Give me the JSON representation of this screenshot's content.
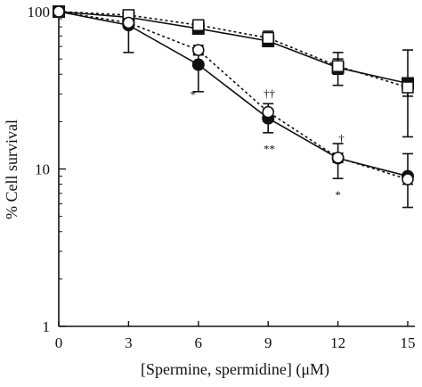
{
  "chart_data": {
    "type": "line",
    "xlabel": "[Spermine, spermidine] (μM)",
    "ylabel": "% Cell survival",
    "y_scale": "log",
    "xlim": [
      0,
      15
    ],
    "ylim": [
      1,
      100
    ],
    "x_ticks": [
      "0",
      "3",
      "6",
      "9",
      "12",
      "15"
    ],
    "y_ticks": [
      "1",
      "10",
      "100"
    ],
    "x": [
      0,
      3,
      6,
      9,
      12,
      15
    ],
    "grid": false,
    "legend": "none",
    "series": [
      {
        "marker": "filled-square",
        "line": "solid",
        "values": [
          100,
          92,
          78,
          65,
          44,
          35
        ],
        "err_low": [
          100,
          85,
          74,
          60,
          34,
          16
        ],
        "err_high": [
          100,
          98,
          82,
          70,
          55,
          57
        ]
      },
      {
        "marker": "open-square",
        "line": "dotted",
        "values": [
          100,
          95,
          82,
          68,
          45,
          33
        ],
        "err_low": [
          100,
          90,
          78,
          64,
          40,
          29
        ],
        "err_high": [
          100,
          100,
          86,
          75,
          50,
          37
        ]
      },
      {
        "marker": "filled-circle",
        "line": "solid",
        "values": [
          100,
          82,
          46,
          21,
          11.7,
          9
        ],
        "err_low": [
          100,
          55,
          31,
          17,
          8.7,
          5.7
        ],
        "err_high": [
          100,
          90,
          54,
          24,
          14.5,
          12.5
        ]
      },
      {
        "marker": "open-circle",
        "line": "dotted",
        "values": [
          100,
          85,
          57,
          23,
          11.8,
          8.6
        ],
        "err_low": [
          100,
          80,
          53,
          20,
          11,
          8
        ],
        "err_high": [
          100,
          90,
          61,
          26,
          12.6,
          9.2
        ]
      }
    ],
    "annotations": [
      {
        "text": "*",
        "x": 6,
        "y": 30,
        "anchor": "start",
        "dx": -0.35
      },
      {
        "text": "††",
        "x": 9,
        "y": 30.5,
        "anchor": "middle",
        "dx": 0.05
      },
      {
        "text": "**",
        "x": 9,
        "y": 13.5,
        "anchor": "middle",
        "dx": 0.05
      },
      {
        "text": "†",
        "x": 12,
        "y": 15.8,
        "anchor": "middle",
        "dx": 0.15
      },
      {
        "text": "*",
        "x": 12,
        "y": 6.9,
        "anchor": "middle",
        "dx": 0
      }
    ]
  },
  "colors": {
    "ink": "#111111",
    "background": "#ffffff"
  }
}
